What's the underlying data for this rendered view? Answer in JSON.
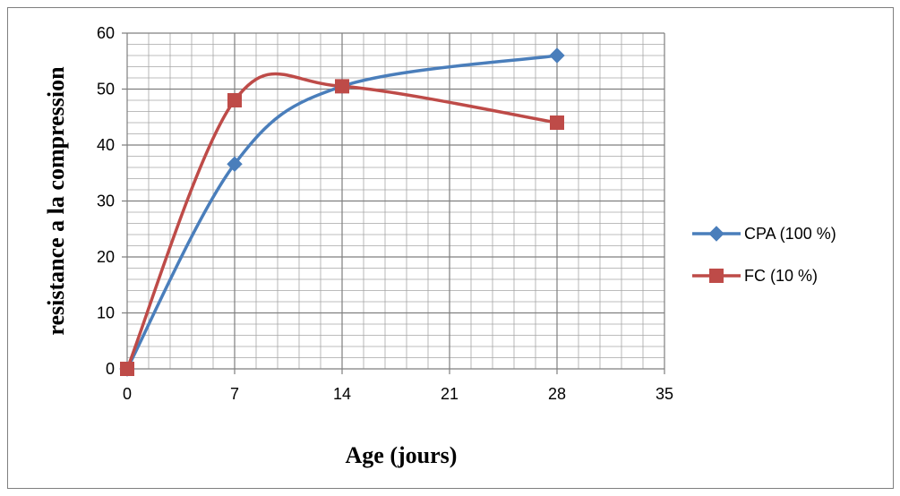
{
  "chart_data": {
    "type": "line",
    "title": "",
    "xlabel": "Age (jours)",
    "ylabel": "resistance a la compression",
    "xlim": [
      0,
      35
    ],
    "ylim": [
      0,
      60
    ],
    "x_ticks": [
      0,
      7,
      14,
      21,
      28,
      35
    ],
    "y_ticks": [
      0,
      10,
      20,
      30,
      40,
      50,
      60
    ],
    "grid": true,
    "legend_position": "right",
    "smooth": true,
    "series": [
      {
        "name": "CPA (100 %)",
        "color": "#4a7ebb",
        "marker": "diamond",
        "points": [
          [
            0,
            0
          ],
          [
            7,
            36.6
          ],
          [
            14,
            50.5
          ],
          [
            28,
            56
          ]
        ]
      },
      {
        "name": "FC (10 %)",
        "color": "#be4b48",
        "marker": "square",
        "points": [
          [
            0,
            0
          ],
          [
            7,
            48
          ],
          [
            14,
            50.5
          ],
          [
            28,
            44
          ]
        ]
      }
    ]
  }
}
